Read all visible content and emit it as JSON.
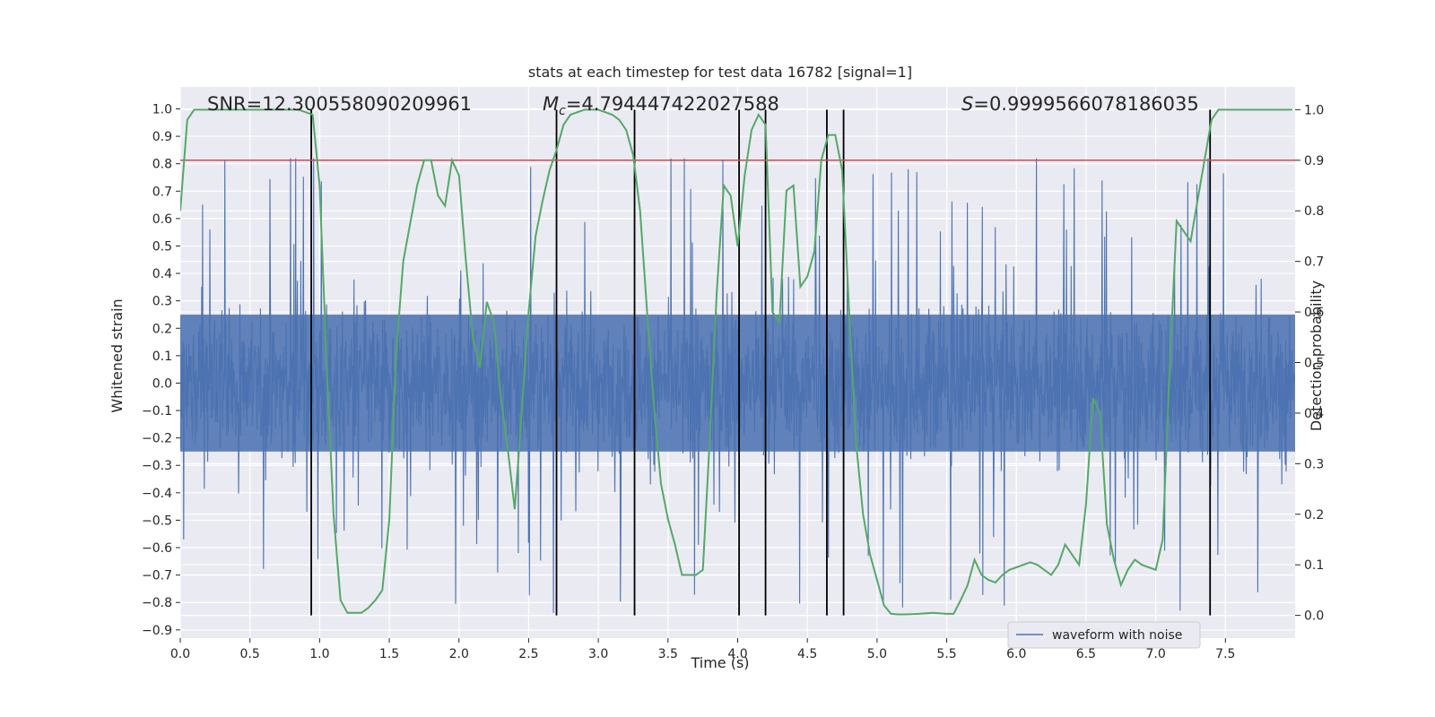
{
  "chart_data": {
    "type": "line",
    "title": "stats at each timestep for test data 16782 [signal=1]",
    "xlabel": "Time (s)",
    "ylabel": "Whitened strain",
    "y2label": "Detection probability",
    "xlim": [
      0.0,
      8.0
    ],
    "ylim": [
      -0.93,
      1.08
    ],
    "y2lim": [
      -0.045,
      1.045
    ],
    "x_ticks": [
      0.0,
      0.5,
      1.0,
      1.5,
      2.0,
      2.5,
      3.0,
      3.5,
      4.0,
      4.5,
      5.0,
      5.5,
      6.0,
      6.5,
      7.0,
      7.5
    ],
    "x_tick_labels": [
      "0.0",
      "0.5",
      "1.0",
      "1.5",
      "2.0",
      "2.5",
      "3.0",
      "3.5",
      "4.0",
      "4.5",
      "5.0",
      "5.5",
      "6.0",
      "6.5",
      "7.0",
      "7.5"
    ],
    "y_ticks": [
      1.0,
      0.9,
      0.8,
      0.7,
      0.6,
      0.5,
      0.4,
      0.3,
      0.2,
      0.1,
      0.0,
      -0.1,
      -0.2,
      -0.3,
      -0.4,
      -0.5,
      -0.6,
      -0.7,
      -0.8,
      -0.9
    ],
    "y_tick_labels": [
      "1.0",
      "0.9",
      "0.8",
      "0.7",
      "0.6",
      "0.5",
      "0.4",
      "0.3",
      "0.2",
      "0.1",
      "0.0",
      "−0.1",
      "−0.2",
      "−0.3",
      "−0.4",
      "−0.5",
      "−0.6",
      "−0.7",
      "−0.8",
      "−0.9"
    ],
    "y2_ticks": [
      1.0,
      0.9,
      0.8,
      0.7,
      0.6,
      0.5,
      0.4,
      0.3,
      0.2,
      0.1,
      0.0
    ],
    "y2_tick_labels": [
      "1.0",
      "0.9",
      "0.8",
      "0.7",
      "0.6",
      "0.5",
      "0.4",
      "0.3",
      "0.2",
      "0.1",
      "0.0"
    ],
    "grid": true,
    "annotations": {
      "snr": "SNR=12.300558090209961",
      "mc_symbol": "M",
      "mc_subscript": "c",
      "mc_value": "=4.794447422027588",
      "s_symbol": "S",
      "s_value": "=0.9999566078186035"
    },
    "threshold": {
      "axis": "y2",
      "value": 0.9,
      "color": "#c44e52"
    },
    "vlines": {
      "x": [
        0.94,
        2.7,
        3.26,
        4.01,
        4.2,
        4.64,
        4.76,
        7.39
      ],
      "ymin": 0.0,
      "ymax": 1.0,
      "axis": "y2",
      "color": "#000000"
    },
    "waveform": {
      "name": "waveform with noise",
      "color": "#4c72b0",
      "note": "whitened strain with noise, ~0.8 peak amplitude, sampled densely over 0-8 s",
      "core_amplitude": 0.32,
      "spike_amplitude": 0.62
    },
    "series": [
      {
        "name": "Detection probability",
        "axis": "y2",
        "color": "#55a868",
        "x": [
          0.0,
          0.05,
          0.1,
          0.2,
          0.3,
          0.5,
          0.7,
          0.85,
          0.95,
          1.0,
          1.05,
          1.1,
          1.15,
          1.2,
          1.3,
          1.35,
          1.4,
          1.45,
          1.5,
          1.55,
          1.6,
          1.7,
          1.75,
          1.8,
          1.85,
          1.9,
          1.95,
          2.0,
          2.05,
          2.1,
          2.15,
          2.2,
          2.25,
          2.3,
          2.35,
          2.4,
          2.45,
          2.5,
          2.55,
          2.6,
          2.65,
          2.7,
          2.75,
          2.8,
          2.9,
          3.0,
          3.1,
          3.15,
          3.2,
          3.25,
          3.3,
          3.35,
          3.4,
          3.45,
          3.5,
          3.55,
          3.6,
          3.7,
          3.75,
          3.8,
          3.85,
          3.9,
          3.95,
          4.0,
          4.05,
          4.1,
          4.15,
          4.2,
          4.25,
          4.3,
          4.35,
          4.4,
          4.45,
          4.5,
          4.55,
          4.6,
          4.65,
          4.7,
          4.75,
          4.8,
          4.85,
          4.9,
          4.95,
          5.0,
          5.05,
          5.1,
          5.15,
          5.2,
          5.3,
          5.4,
          5.5,
          5.55,
          5.6,
          5.65,
          5.7,
          5.75,
          5.8,
          5.85,
          5.9,
          5.95,
          6.0,
          6.05,
          6.1,
          6.15,
          6.2,
          6.25,
          6.3,
          6.35,
          6.4,
          6.45,
          6.5,
          6.55,
          6.6,
          6.65,
          6.7,
          6.75,
          6.8,
          6.85,
          6.9,
          6.95,
          7.0,
          7.05,
          7.1,
          7.15,
          7.2,
          7.25,
          7.3,
          7.35,
          7.4,
          7.45,
          7.5,
          7.6,
          7.7,
          7.8,
          7.9,
          7.98
        ],
        "values": [
          0.8,
          0.98,
          1.0,
          1.0,
          1.0,
          1.0,
          1.0,
          1.0,
          0.99,
          0.85,
          0.5,
          0.2,
          0.03,
          0.005,
          0.005,
          0.015,
          0.03,
          0.05,
          0.19,
          0.52,
          0.7,
          0.85,
          0.9,
          0.9,
          0.83,
          0.81,
          0.9,
          0.87,
          0.7,
          0.55,
          0.49,
          0.62,
          0.58,
          0.43,
          0.33,
          0.21,
          0.4,
          0.6,
          0.75,
          0.82,
          0.88,
          0.92,
          0.97,
          0.99,
          1.0,
          1.0,
          0.99,
          0.98,
          0.96,
          0.91,
          0.8,
          0.6,
          0.41,
          0.26,
          0.19,
          0.14,
          0.08,
          0.08,
          0.09,
          0.35,
          0.64,
          0.85,
          0.83,
          0.73,
          0.87,
          0.96,
          0.99,
          0.97,
          0.6,
          0.58,
          0.84,
          0.85,
          0.65,
          0.67,
          0.72,
          0.9,
          0.95,
          0.95,
          0.88,
          0.6,
          0.34,
          0.2,
          0.12,
          0.07,
          0.02,
          0.003,
          0.002,
          0.002,
          0.003,
          0.005,
          0.003,
          0.003,
          0.03,
          0.06,
          0.11,
          0.08,
          0.07,
          0.065,
          0.08,
          0.09,
          0.095,
          0.1,
          0.105,
          0.1,
          0.09,
          0.08,
          0.1,
          0.14,
          0.12,
          0.1,
          0.22,
          0.43,
          0.4,
          0.18,
          0.11,
          0.06,
          0.09,
          0.11,
          0.1,
          0.095,
          0.09,
          0.15,
          0.49,
          0.78,
          0.76,
          0.74,
          0.82,
          0.9,
          0.98,
          1.0,
          1.0,
          1.0,
          1.0,
          1.0,
          1.0,
          1.0
        ]
      }
    ],
    "legend": {
      "labels": [
        "waveform with noise"
      ],
      "position": "lower-right"
    }
  }
}
